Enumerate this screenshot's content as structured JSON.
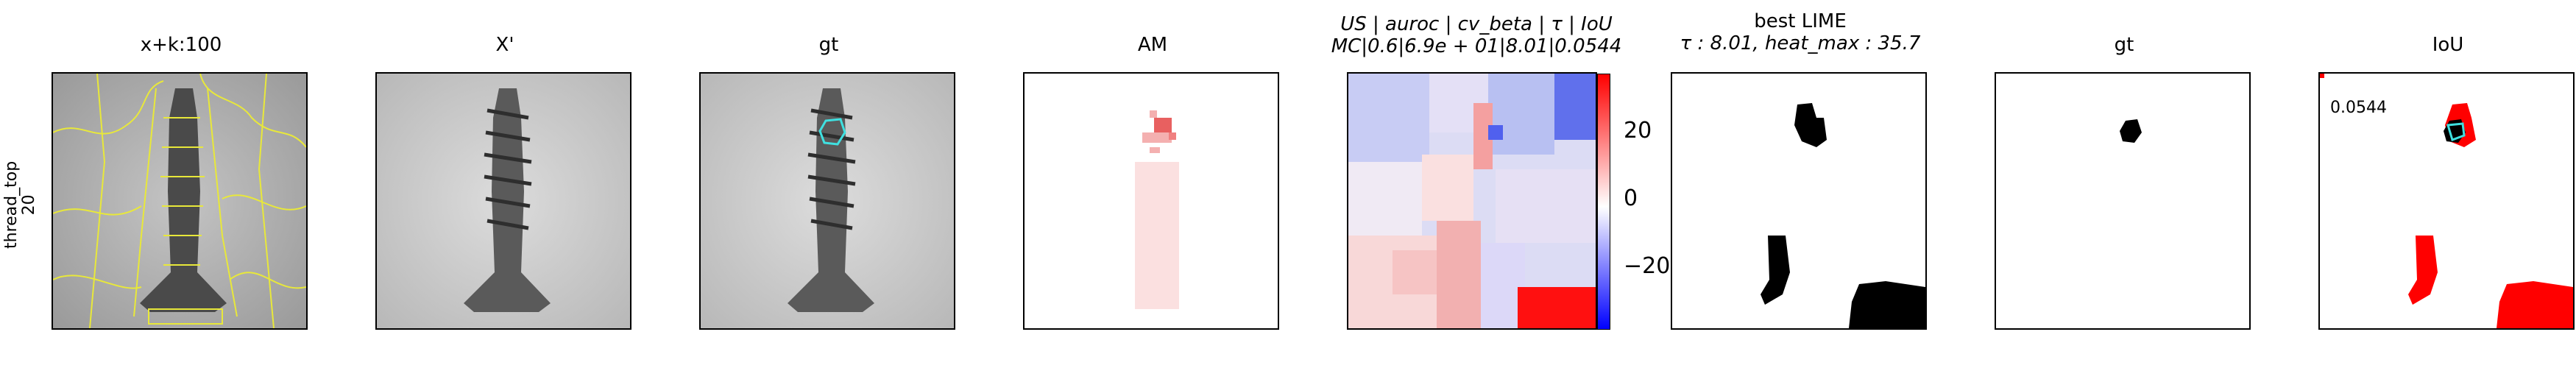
{
  "row_label": [
    "thread_top",
    "20"
  ],
  "panels": [
    {
      "title": "x+k:100"
    },
    {
      "title": "X'"
    },
    {
      "title": "gt"
    },
    {
      "title": "AM"
    },
    {
      "title_line1": "US | auroc | cv_beta | τ | IoU",
      "title_line2": "MC|0.6|6.9e + 01|8.01|0.0544"
    },
    {
      "title_line1": "best LIME",
      "title_line2": "τ : 8.01, heat_max : 35.7"
    },
    {
      "title": "gt"
    },
    {
      "title": "IoU"
    }
  ],
  "colorbar": {
    "ticks": [
      "20",
      "0",
      "−20"
    ],
    "colors": {
      "high": "#ff0000",
      "mid": "#ffffff",
      "low": "#0000ff"
    }
  },
  "iou_value": "0.0544",
  "colors": {
    "overlay_yellow": "#e8e83a",
    "gt_cyan": "#3fe0e0",
    "mask_red": "#ff0000",
    "mask_black": "#000000"
  }
}
